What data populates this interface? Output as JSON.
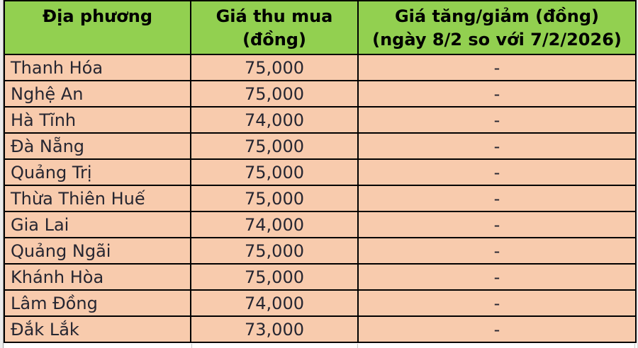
{
  "colors": {
    "header_bg": "#92D050",
    "row_bg": "#F8CBAD",
    "border": "#000000",
    "data_text": "#262631",
    "header_text": "#000000"
  },
  "table": {
    "headers": [
      {
        "line1": "Địa phương",
        "line2": ""
      },
      {
        "line1": "Giá thu mua",
        "line2": "(đồng)"
      },
      {
        "line1": "Giá tăng/giảm (đồng)",
        "line2": "(ngày 8/2 so với 7/2/2026)"
      }
    ],
    "rows": [
      {
        "location": "Thanh Hóa",
        "price": "75,000",
        "change": "-"
      },
      {
        "location": "Nghệ An",
        "price": "75,000",
        "change": "-"
      },
      {
        "location": "Hà Tĩnh",
        "price": "74,000",
        "change": "-"
      },
      {
        "location": "Đà Nẵng",
        "price": "75,000",
        "change": "-"
      },
      {
        "location": "Quảng Trị",
        "price": "75,000",
        "change": "-"
      },
      {
        "location": "Thừa Thiên Huế",
        "price": "75,000",
        "change": "-"
      },
      {
        "location": "Gia Lai",
        "price": "74,000",
        "change": "-"
      },
      {
        "location": "Quảng Ngãi",
        "price": "75,000",
        "change": "-"
      },
      {
        "location": "Khánh Hòa",
        "price": "75,000",
        "change": "-"
      },
      {
        "location": "Lâm Đồng",
        "price": "74,000",
        "change": "-"
      },
      {
        "location": "Đắk Lắk",
        "price": "73,000",
        "change": "-"
      }
    ]
  },
  "chart_data": {
    "type": "table",
    "columns": [
      "Địa phương",
      "Giá thu mua (đồng)",
      "Giá tăng/giảm (đồng) (ngày 8/2 so với 7/2/2026)"
    ],
    "rows": [
      [
        "Thanh Hóa",
        "75,000",
        "-"
      ],
      [
        "Nghệ An",
        "75,000",
        "-"
      ],
      [
        "Hà Tĩnh",
        "74,000",
        "-"
      ],
      [
        "Đà Nẵng",
        "75,000",
        "-"
      ],
      [
        "Quảng Trị",
        "75,000",
        "-"
      ],
      [
        "Thừa Thiên Huế",
        "75,000",
        "-"
      ],
      [
        "Gia Lai",
        "74,000",
        "-"
      ],
      [
        "Quảng Ngãi",
        "75,000",
        "-"
      ],
      [
        "Khánh Hòa",
        "75,000",
        "-"
      ],
      [
        "Lâm Đồng",
        "74,000",
        "-"
      ],
      [
        "Đắk Lắk",
        "73,000",
        "-"
      ]
    ]
  }
}
